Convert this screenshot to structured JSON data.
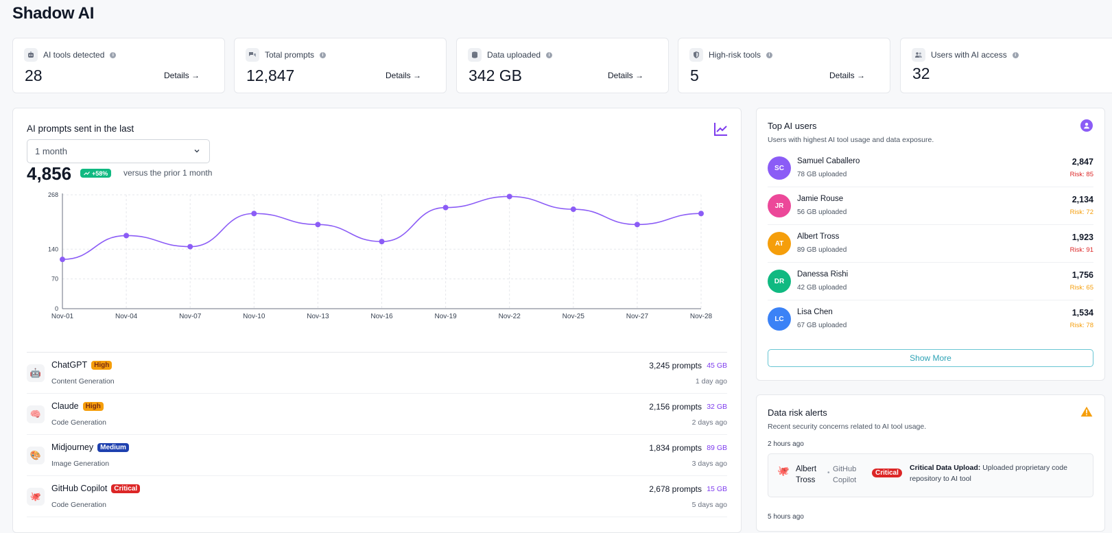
{
  "page": {
    "title": "Shadow AI"
  },
  "stats": [
    {
      "label": "AI tools detected",
      "value": "28",
      "details": "Details →",
      "icon": "robot-icon"
    },
    {
      "label": "Total prompts",
      "value": "12,847",
      "details": "Details →",
      "icon": "chat-bubbles-icon"
    },
    {
      "label": "Data uploaded",
      "value": "342 GB",
      "details": "Details →",
      "icon": "database-icon"
    },
    {
      "label": "High-risk tools",
      "value": "5",
      "details": "Details →",
      "icon": "shield-icon"
    },
    {
      "label": "Users with AI access",
      "value": "32",
      "icon": "users-icon"
    }
  ],
  "chart_panel": {
    "title": "AI prompts sent in the last",
    "range": "1 month",
    "total": "4,856",
    "change": "+58%",
    "versus": "versus the prior 1 month"
  },
  "chart_data": {
    "type": "line",
    "title": "AI prompts sent in the last 1 month",
    "categories": [
      "Nov-01",
      "Nov-04",
      "Nov-07",
      "Nov-10",
      "Nov-13",
      "Nov-16",
      "Nov-19",
      "Nov-22",
      "Nov-25",
      "Nov-27",
      "Nov-28"
    ],
    "series": [
      {
        "name": "Prompts",
        "values": [
          116,
          172,
          146,
          224,
          198,
          158,
          238,
          264,
          234,
          198,
          224
        ]
      }
    ],
    "yticks": [
      "0",
      "70",
      "140",
      "268"
    ],
    "ytick_values": [
      0,
      70,
      140,
      268
    ],
    "ylim": [
      0,
      268
    ],
    "grid": true,
    "color": "#8b5cf6"
  },
  "tools": [
    {
      "name": "ChatGPT",
      "risk": "High",
      "category": "Content Generation",
      "prompts": "3,245 prompts",
      "data": "45 GB",
      "time": "1 day ago",
      "icon": "🤖"
    },
    {
      "name": "Claude",
      "risk": "High",
      "category": "Code Generation",
      "prompts": "2,156 prompts",
      "data": "32 GB",
      "time": "2 days ago",
      "icon": "🧠"
    },
    {
      "name": "Midjourney",
      "risk": "Medium",
      "category": "Image Generation",
      "prompts": "1,834 prompts",
      "data": "89 GB",
      "time": "3 days ago",
      "icon": "🎨"
    },
    {
      "name": "GitHub Copilot",
      "risk": "Critical",
      "category": "Code Generation",
      "prompts": "2,678 prompts",
      "data": "15 GB",
      "time": "5 days ago",
      "icon": "🐙"
    }
  ],
  "top_users": {
    "title": "Top AI users",
    "subtitle": "Users with highest AI tool usage and data exposure.",
    "show_more": "Show More",
    "users": [
      {
        "initials": "SC",
        "name": "Samuel Caballero",
        "uploaded": "78 GB uploaded",
        "count": "2,847",
        "risk": "Risk: 85",
        "color": "#8b5cf6",
        "risk_color": "#dc2626"
      },
      {
        "initials": "JR",
        "name": "Jamie Rouse",
        "uploaded": "56 GB uploaded",
        "count": "2,134",
        "risk": "Risk: 72",
        "color": "#ec4899",
        "risk_color": "#f59e0b"
      },
      {
        "initials": "AT",
        "name": "Albert Tross",
        "uploaded": "89 GB uploaded",
        "count": "1,923",
        "risk": "Risk: 91",
        "color": "#f59e0b",
        "risk_color": "#dc2626"
      },
      {
        "initials": "DR",
        "name": "Danessa Rishi",
        "uploaded": "42 GB uploaded",
        "count": "1,756",
        "risk": "Risk: 65",
        "color": "#10b981",
        "risk_color": "#f59e0b"
      },
      {
        "initials": "LC",
        "name": "Lisa Chen",
        "uploaded": "67 GB uploaded",
        "count": "1,534",
        "risk": "Risk: 78",
        "color": "#3b82f6",
        "risk_color": "#f59e0b"
      }
    ]
  },
  "alerts": {
    "title": "Data risk alerts",
    "subtitle": "Recent security concerns related to AI tool usage.",
    "items": [
      {
        "time": "2 hours ago",
        "user": "Albert Tross",
        "sep": "•",
        "tool": "GitHub Copilot",
        "severity": "Critical",
        "headline": "Critical Data Upload:",
        "message": "Uploaded proprietary code repository to AI tool",
        "icon": "🐙"
      },
      {
        "time": "5 hours ago"
      }
    ]
  }
}
